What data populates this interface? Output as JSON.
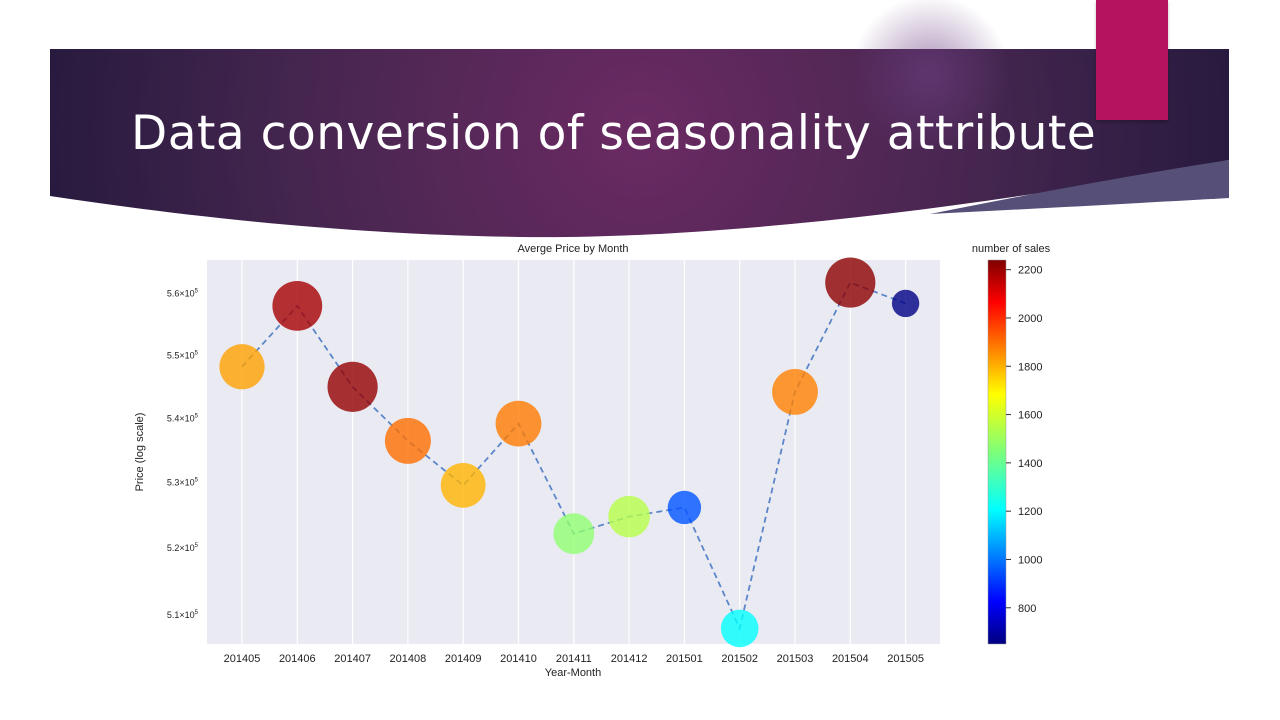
{
  "slide": {
    "title": "Data conversion of seasonality attribute",
    "colors": {
      "banner_dark": "#2b1e45",
      "banner_mid": "#6b2a63",
      "accent": "#b5135f"
    }
  },
  "chart_data": {
    "type": "scatter",
    "title": "Averge Price by Month",
    "xlabel": "Year-Month",
    "ylabel": "Price (log scale)",
    "y_scale": "log",
    "ylim": [
      505700,
      565500
    ],
    "grid": true,
    "categories": [
      "201405",
      "201406",
      "201407",
      "201408",
      "201409",
      "201410",
      "201411",
      "201412",
      "201501",
      "201502",
      "201503",
      "201504",
      "201505"
    ],
    "price": [
      548200,
      558000,
      545000,
      536500,
      529600,
      539200,
      522200,
      524800,
      526200,
      508000,
      544200,
      561800,
      558400
    ],
    "number_of_sales": [
      1790,
      2180,
      2210,
      1870,
      1760,
      1850,
      1470,
      1530,
      980,
      1250,
      1840,
      2220,
      660
    ],
    "y_ticks": [
      {
        "value": 510000,
        "mantissa": "5.1",
        "exp": "5"
      },
      {
        "value": 520000,
        "mantissa": "5.2",
        "exp": "5"
      },
      {
        "value": 530000,
        "mantissa": "5.3",
        "exp": "5"
      },
      {
        "value": 540000,
        "mantissa": "5.4",
        "exp": "5"
      },
      {
        "value": 550000,
        "mantissa": "5.5",
        "exp": "5"
      },
      {
        "value": 560000,
        "mantissa": "5.6",
        "exp": "5"
      }
    ],
    "line_style": "dashed",
    "line_color": "#5b86c9",
    "colorbar": {
      "label": "number of sales",
      "colormap": "jet",
      "range": [
        650,
        2240
      ],
      "ticks": [
        800,
        1000,
        1200,
        1400,
        1600,
        1800,
        2000,
        2200
      ]
    },
    "legend": "colorbar right"
  }
}
